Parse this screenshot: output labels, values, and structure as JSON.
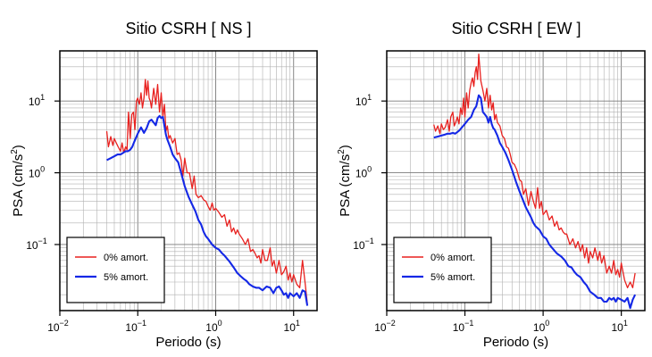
{
  "colors": {
    "undamped": "#e8211f",
    "damped": "#1428e6",
    "axis": "#000000",
    "grid_major": "#7a7a7a",
    "grid_minor": "#b0b0b0"
  },
  "chart_data": [
    {
      "type": "line",
      "title": "Sitio CSRH [ NS ]",
      "xlabel": "Periodo (s)",
      "ylabel_parts": {
        "main": "PSA (cm/s",
        "exp": "2",
        "end": ")"
      },
      "xscale": "log",
      "yscale": "log",
      "xlim": [
        0.01,
        20
      ],
      "ylim": [
        0.012,
        50
      ],
      "grid": true,
      "legend": "bottom-left",
      "xticks": [
        {
          "base": "10",
          "exp": "−2",
          "value": 0.01
        },
        {
          "base": "10",
          "exp": "−1",
          "value": 0.1
        },
        {
          "base": "10",
          "exp": "0",
          "value": 1
        },
        {
          "base": "10",
          "exp": "1",
          "value": 10
        }
      ],
      "yticks": [
        {
          "base": "10",
          "exp": "−1",
          "value": 0.1
        },
        {
          "base": "10",
          "exp": "0",
          "value": 1
        },
        {
          "base": "10",
          "exp": "1",
          "value": 10
        }
      ],
      "series": [
        {
          "name": "0% amort.",
          "color": "#e8211f",
          "x": [
            0.04,
            0.042,
            0.045,
            0.048,
            0.05,
            0.053,
            0.056,
            0.06,
            0.063,
            0.066,
            0.07,
            0.073,
            0.076,
            0.08,
            0.084,
            0.088,
            0.092,
            0.096,
            0.1,
            0.105,
            0.11,
            0.115,
            0.12,
            0.125,
            0.13,
            0.135,
            0.14,
            0.145,
            0.15,
            0.16,
            0.17,
            0.18,
            0.19,
            0.2,
            0.21,
            0.22,
            0.23,
            0.24,
            0.25,
            0.26,
            0.28,
            0.3,
            0.32,
            0.34,
            0.36,
            0.38,
            0.4,
            0.43,
            0.46,
            0.5,
            0.53,
            0.56,
            0.6,
            0.65,
            0.7,
            0.75,
            0.8,
            0.85,
            0.9,
            0.95,
            1.0,
            1.1,
            1.2,
            1.3,
            1.4,
            1.5,
            1.6,
            1.7,
            1.8,
            1.9,
            2.0,
            2.2,
            2.4,
            2.6,
            2.8,
            3.0,
            3.2,
            3.4,
            3.6,
            3.8,
            4.0,
            4.3,
            4.6,
            5.0,
            5.3,
            5.6,
            6.0,
            6.5,
            7.0,
            7.5,
            8.0,
            8.5,
            9.0,
            9.5,
            10.0,
            11.0,
            12.0,
            13.0,
            14.0,
            15.0
          ],
          "y": [
            3.8,
            2.3,
            3.2,
            2.4,
            3.0,
            2.6,
            2.3,
            2.0,
            2.6,
            1.9,
            2.3,
            2.1,
            7.0,
            3.0,
            6.5,
            7.0,
            4.0,
            10.0,
            11.0,
            9.0,
            13.0,
            8.0,
            11.0,
            20.0,
            12.0,
            19.0,
            11.0,
            10.0,
            8.0,
            15.0,
            9.0,
            17.0,
            7.0,
            13.0,
            6.0,
            9.0,
            3.8,
            4.5,
            3.0,
            3.3,
            2.6,
            3.0,
            1.8,
            1.9,
            1.5,
            0.9,
            1.6,
            1.0,
            1.0,
            0.6,
            0.9,
            0.5,
            0.45,
            0.48,
            0.42,
            0.4,
            0.34,
            0.3,
            0.38,
            0.3,
            0.32,
            0.28,
            0.24,
            0.26,
            0.18,
            0.22,
            0.15,
            0.17,
            0.14,
            0.16,
            0.14,
            0.12,
            0.1,
            0.12,
            0.08,
            0.085,
            0.075,
            0.065,
            0.07,
            0.055,
            0.085,
            0.06,
            0.06,
            0.09,
            0.05,
            0.06,
            0.04,
            0.06,
            0.038,
            0.042,
            0.05,
            0.032,
            0.04,
            0.03,
            0.038,
            0.028,
            0.025,
            0.06,
            0.03,
            0.015
          ]
        },
        {
          "name": "5% amort.",
          "color": "#1428e6",
          "x": [
            0.04,
            0.045,
            0.05,
            0.055,
            0.06,
            0.065,
            0.07,
            0.075,
            0.08,
            0.085,
            0.09,
            0.1,
            0.11,
            0.12,
            0.13,
            0.14,
            0.15,
            0.16,
            0.17,
            0.18,
            0.19,
            0.2,
            0.21,
            0.22,
            0.23,
            0.24,
            0.26,
            0.28,
            0.3,
            0.33,
            0.36,
            0.4,
            0.45,
            0.5,
            0.55,
            0.6,
            0.65,
            0.7,
            0.75,
            0.8,
            0.9,
            1.0,
            1.1,
            1.2,
            1.3,
            1.5,
            1.7,
            1.9,
            2.1,
            2.3,
            2.5,
            2.7,
            3.0,
            3.3,
            3.6,
            4.0,
            4.5,
            5.0,
            5.5,
            6.0,
            6.5,
            7.0,
            7.5,
            8.0,
            8.5,
            9.0,
            10.0,
            11.0,
            12.0,
            13.0,
            14.0,
            15.0
          ],
          "y": [
            1.5,
            1.6,
            1.7,
            1.8,
            1.8,
            1.9,
            2.0,
            2.0,
            2.1,
            2.3,
            2.7,
            3.5,
            4.3,
            3.6,
            4.2,
            5.2,
            5.5,
            5.0,
            4.6,
            5.8,
            6.2,
            5.8,
            6.0,
            4.5,
            3.4,
            2.9,
            2.3,
            1.8,
            1.6,
            1.4,
            1.0,
            0.65,
            0.46,
            0.36,
            0.29,
            0.22,
            0.19,
            0.15,
            0.13,
            0.12,
            0.1,
            0.09,
            0.085,
            0.076,
            0.07,
            0.058,
            0.048,
            0.04,
            0.036,
            0.033,
            0.031,
            0.028,
            0.026,
            0.025,
            0.025,
            0.023,
            0.026,
            0.025,
            0.021,
            0.025,
            0.026,
            0.023,
            0.02,
            0.021,
            0.018,
            0.021,
            0.019,
            0.021,
            0.018,
            0.023,
            0.022,
            0.014
          ]
        }
      ]
    },
    {
      "type": "line",
      "title": "Sitio CSRH [ EW ]",
      "xlabel": "Periodo (s)",
      "ylabel_parts": {
        "main": "PSA (cm/s",
        "exp": "2",
        "end": ")"
      },
      "xscale": "log",
      "yscale": "log",
      "xlim": [
        0.01,
        20
      ],
      "ylim": [
        0.012,
        50
      ],
      "grid": true,
      "legend": "bottom-left",
      "xticks": [
        {
          "base": "10",
          "exp": "−2",
          "value": 0.01
        },
        {
          "base": "10",
          "exp": "−1",
          "value": 0.1
        },
        {
          "base": "10",
          "exp": "0",
          "value": 1
        },
        {
          "base": "10",
          "exp": "1",
          "value": 10
        }
      ],
      "yticks": [
        {
          "base": "10",
          "exp": "−1",
          "value": 0.1
        },
        {
          "base": "10",
          "exp": "0",
          "value": 1
        },
        {
          "base": "10",
          "exp": "1",
          "value": 10
        }
      ],
      "series": [
        {
          "name": "0% amort.",
          "color": "#e8211f",
          "x": [
            0.04,
            0.042,
            0.045,
            0.048,
            0.05,
            0.053,
            0.056,
            0.06,
            0.063,
            0.066,
            0.07,
            0.073,
            0.076,
            0.08,
            0.084,
            0.088,
            0.092,
            0.096,
            0.1,
            0.105,
            0.11,
            0.115,
            0.12,
            0.125,
            0.13,
            0.135,
            0.14,
            0.145,
            0.15,
            0.16,
            0.17,
            0.18,
            0.19,
            0.2,
            0.21,
            0.22,
            0.23,
            0.24,
            0.25,
            0.26,
            0.28,
            0.3,
            0.32,
            0.34,
            0.36,
            0.38,
            0.4,
            0.43,
            0.46,
            0.5,
            0.53,
            0.56,
            0.6,
            0.65,
            0.7,
            0.75,
            0.8,
            0.85,
            0.9,
            0.95,
            1.0,
            1.1,
            1.2,
            1.3,
            1.4,
            1.5,
            1.6,
            1.7,
            1.8,
            1.9,
            2.0,
            2.2,
            2.4,
            2.6,
            2.8,
            3.0,
            3.2,
            3.4,
            3.6,
            3.8,
            4.0,
            4.3,
            4.6,
            5.0,
            5.3,
            5.6,
            6.0,
            6.5,
            7.0,
            7.5,
            8.0,
            8.5,
            9.0,
            9.5,
            10.0,
            11.0,
            12.0,
            13.0,
            14.0,
            15.0
          ],
          "y": [
            4.7,
            3.8,
            4.5,
            3.5,
            4.8,
            4.0,
            4.3,
            5.5,
            3.8,
            6.0,
            7.0,
            4.5,
            5.0,
            6.0,
            4.8,
            8.0,
            6.5,
            11.0,
            6.0,
            13.0,
            8.0,
            14.0,
            18.0,
            21.0,
            16.0,
            25.0,
            30.0,
            20.0,
            45.0,
            19.0,
            14.0,
            10.0,
            15.0,
            8.0,
            12.0,
            7.5,
            9.5,
            5.5,
            6.5,
            5.0,
            4.5,
            3.3,
            3.0,
            2.3,
            2.2,
            1.8,
            1.4,
            1.3,
            1.1,
            0.8,
            0.75,
            0.5,
            0.6,
            0.35,
            0.55,
            0.4,
            0.32,
            0.62,
            0.32,
            0.4,
            0.26,
            0.3,
            0.22,
            0.25,
            0.18,
            0.21,
            0.16,
            0.17,
            0.15,
            0.14,
            0.14,
            0.1,
            0.12,
            0.09,
            0.11,
            0.08,
            0.1,
            0.065,
            0.09,
            0.055,
            0.08,
            0.065,
            0.09,
            0.06,
            0.08,
            0.055,
            0.07,
            0.04,
            0.05,
            0.04,
            0.06,
            0.038,
            0.045,
            0.035,
            0.055,
            0.032,
            0.025,
            0.03,
            0.025,
            0.04
          ]
        },
        {
          "name": "5% amort.",
          "color": "#1428e6",
          "x": [
            0.04,
            0.045,
            0.05,
            0.055,
            0.06,
            0.065,
            0.07,
            0.075,
            0.08,
            0.085,
            0.09,
            0.1,
            0.11,
            0.12,
            0.13,
            0.14,
            0.15,
            0.16,
            0.17,
            0.18,
            0.19,
            0.2,
            0.21,
            0.22,
            0.23,
            0.24,
            0.26,
            0.28,
            0.3,
            0.33,
            0.36,
            0.4,
            0.45,
            0.5,
            0.55,
            0.6,
            0.65,
            0.7,
            0.75,
            0.8,
            0.9,
            1.0,
            1.1,
            1.2,
            1.3,
            1.5,
            1.7,
            1.9,
            2.1,
            2.3,
            2.5,
            2.7,
            3.0,
            3.3,
            3.6,
            4.0,
            4.5,
            5.0,
            5.5,
            6.0,
            6.5,
            7.0,
            7.5,
            8.0,
            8.5,
            9.0,
            10.0,
            11.0,
            12.0,
            13.0,
            14.0,
            15.0
          ],
          "y": [
            3.1,
            3.2,
            3.3,
            3.4,
            3.5,
            3.5,
            3.6,
            3.5,
            3.7,
            3.9,
            4.2,
            4.8,
            5.5,
            6.0,
            7.5,
            8.5,
            12.0,
            11.0,
            7.0,
            6.5,
            6.0,
            5.0,
            6.0,
            4.8,
            4.2,
            4.0,
            3.3,
            2.6,
            2.3,
            1.9,
            1.5,
            1.1,
            0.75,
            0.55,
            0.42,
            0.33,
            0.28,
            0.24,
            0.2,
            0.18,
            0.16,
            0.13,
            0.12,
            0.1,
            0.09,
            0.075,
            0.068,
            0.06,
            0.05,
            0.048,
            0.042,
            0.038,
            0.035,
            0.03,
            0.027,
            0.022,
            0.02,
            0.018,
            0.018,
            0.016,
            0.016,
            0.018,
            0.017,
            0.018,
            0.016,
            0.018,
            0.017,
            0.016,
            0.018,
            0.013,
            0.017,
            0.02
          ]
        }
      ]
    }
  ]
}
